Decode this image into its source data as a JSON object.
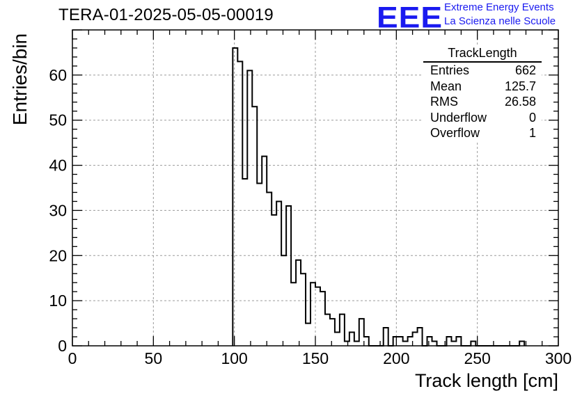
{
  "header": {
    "title": "TERA-01-2025-05-05-00019",
    "logo_text": "EEE",
    "logo_line1": "Extreme Energy Events",
    "logo_line2": "La Scienza nelle Scuole",
    "brand_color": "#1a1af0"
  },
  "stats_box": {
    "title": "TrackLength",
    "rows": [
      {
        "label": "Entries",
        "value": "662"
      },
      {
        "label": "Mean",
        "value": "125.7"
      },
      {
        "label": "RMS",
        "value": "26.58"
      },
      {
        "label": "Underflow",
        "value": "0"
      },
      {
        "label": "Overflow",
        "value": "1"
      }
    ]
  },
  "chart_data": {
    "type": "bar",
    "title": "TERA-01-2025-05-05-00019",
    "xlabel": "Track length [cm]",
    "ylabel": "Entries/bin",
    "xlim": [
      0,
      300
    ],
    "ylim": [
      0,
      70
    ],
    "bin_width": 3,
    "bin_start": 99,
    "x_ticks": [
      0,
      50,
      100,
      150,
      200,
      250,
      300
    ],
    "y_ticks": [
      0,
      10,
      20,
      30,
      40,
      50,
      60
    ],
    "grid": true,
    "values": [
      66,
      63,
      37,
      61,
      53,
      36,
      42,
      34,
      29,
      32,
      20,
      31,
      14,
      19,
      16,
      5,
      14,
      13,
      12,
      7,
      6,
      3,
      7,
      1,
      3,
      1,
      6,
      2,
      0,
      0,
      0,
      4,
      0,
      2,
      2,
      1,
      2,
      3,
      4,
      0,
      2,
      1,
      0,
      0,
      2,
      1,
      2,
      0,
      0,
      1,
      0,
      0,
      0,
      0,
      0,
      0,
      0,
      0,
      0,
      1
    ]
  }
}
